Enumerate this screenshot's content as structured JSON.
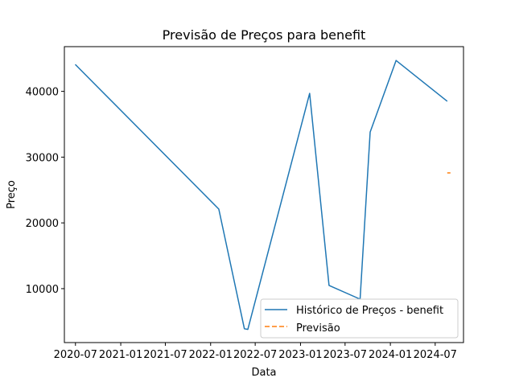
{
  "chart_data": {
    "type": "line",
    "title": "Previsão de Preços para benefit",
    "xlabel": "Data",
    "ylabel": "Preço",
    "x_ticks": [
      "2020-07",
      "2021-01",
      "2021-07",
      "2022-01",
      "2022-07",
      "2023-01",
      "2023-07",
      "2024-01",
      "2024-07"
    ],
    "y_ticks": [
      10000,
      20000,
      30000,
      40000
    ],
    "xlim": [
      "2020-05-17",
      "2024-10-24"
    ],
    "ylim": [
      1800,
      46800
    ],
    "grid": false,
    "legend_position": "lower-right",
    "series": [
      {
        "name": "Histórico de Preços - benefit",
        "color": "#1f77b4",
        "style": "solid",
        "points": [
          [
            "2020-06-30",
            44100
          ],
          [
            "2022-02-03",
            22100
          ],
          [
            "2022-05-18",
            3900
          ],
          [
            "2022-06-01",
            3800
          ],
          [
            "2023-02-07",
            39700
          ],
          [
            "2023-04-27",
            10500
          ],
          [
            "2023-08-31",
            8400
          ],
          [
            "2023-10-11",
            33800
          ],
          [
            "2024-01-24",
            44700
          ],
          [
            "2024-08-19",
            38500
          ]
        ]
      },
      {
        "name": "Previsão",
        "color": "#ff7f0e",
        "style": "dashed",
        "points": [
          [
            "2024-08-19",
            27600
          ],
          [
            "2024-09-01",
            27600
          ]
        ]
      }
    ]
  }
}
